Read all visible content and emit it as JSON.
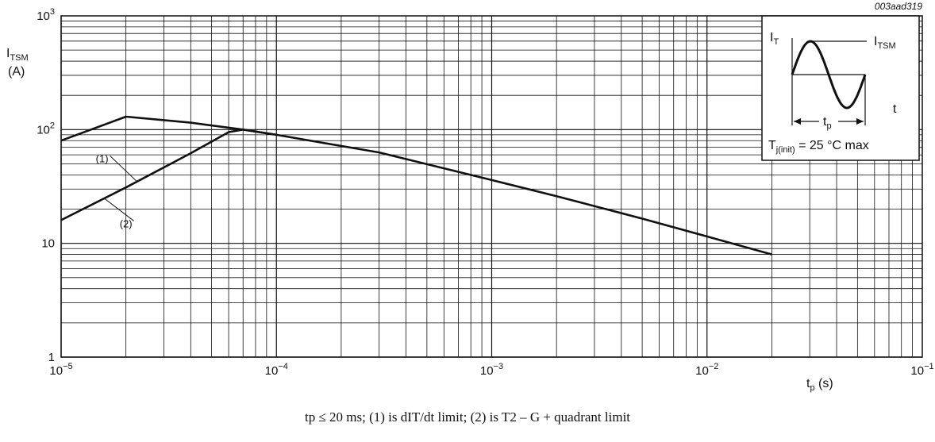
{
  "figure_code": "003aad319",
  "caption": "tp ≤ 20 ms; (1) is dIT/dt limit; (2) is T2 – G + quadrant limit",
  "chart_data": {
    "type": "line",
    "xscale": "log",
    "yscale": "log",
    "xlim": [
      1e-05,
      0.1
    ],
    "ylim": [
      1,
      1000
    ],
    "grid": true,
    "ylabel_main": "I",
    "ylabel_sub": "TSM",
    "ylabel_unit": "(A)",
    "xlabel_main": "t",
    "xlabel_sub": "p",
    "xlabel_unit": "(s)",
    "x_ticks": [
      {
        "value": 1e-05,
        "base": "10",
        "exp": "−5"
      },
      {
        "value": 0.0001,
        "base": "10",
        "exp": "−4"
      },
      {
        "value": 0.001,
        "base": "10",
        "exp": "−3"
      },
      {
        "value": 0.01,
        "base": "10",
        "exp": "−2"
      },
      {
        "value": 0.1,
        "base": "10",
        "exp": "−1"
      }
    ],
    "y_ticks": [
      {
        "value": 1,
        "base": "1",
        "exp": ""
      },
      {
        "value": 10,
        "base": "10",
        "exp": ""
      },
      {
        "value": 100,
        "base": "10",
        "exp": "2"
      },
      {
        "value": 1000,
        "base": "10",
        "exp": "3"
      }
    ],
    "series": [
      {
        "name": "(1)",
        "points": [
          [
            1e-05,
            80
          ],
          [
            2e-05,
            130
          ],
          [
            4e-05,
            115
          ],
          [
            7e-05,
            100
          ],
          [
            0.0001,
            90
          ],
          [
            0.0003,
            63
          ],
          [
            0.001,
            36
          ],
          [
            0.002,
            26
          ],
          [
            0.005,
            16.5
          ],
          [
            0.01,
            11.5
          ],
          [
            0.02,
            8
          ]
        ]
      },
      {
        "name": "(2)",
        "points": [
          [
            1e-05,
            16
          ],
          [
            2e-05,
            31
          ],
          [
            4e-05,
            62
          ],
          [
            6e-05,
            95
          ],
          [
            7e-05,
            100
          ],
          [
            0.0001,
            90
          ]
        ]
      }
    ],
    "labels": [
      {
        "text": "(1)",
        "x": 1.55e-05,
        "y": 56,
        "leader_to": [
          2.25e-05,
          35
        ]
      },
      {
        "text": "(2)",
        "x": 2e-05,
        "y": 15,
        "leader_to": [
          1.58e-05,
          25
        ]
      }
    ],
    "inset": {
      "it_main": "I",
      "it_sub": "T",
      "itsm_main": "I",
      "itsm_sub": "TSM",
      "t_label": "t",
      "tp_main": "t",
      "tp_sub": "p",
      "tj_main": "T",
      "tj_sub": "j(init)",
      "tj_rest": " = 25 °C max"
    }
  }
}
